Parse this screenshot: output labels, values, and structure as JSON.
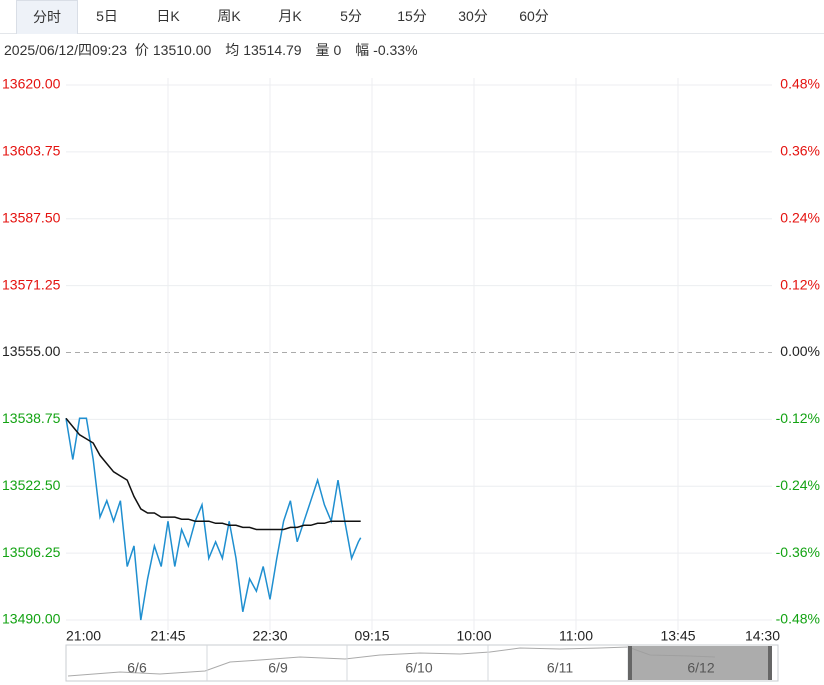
{
  "tabs": [
    "分时",
    "5日",
    "日K",
    "周K",
    "月K",
    "5分",
    "15分",
    "30分",
    "60分"
  ],
  "active_tab": 0,
  "info": {
    "time": "2025/06/12/四09:23",
    "price_label": "价",
    "price": "13510.00",
    "avg_label": "均",
    "avg": "13514.79",
    "volume_label": "量",
    "volume": "0",
    "change_label": "幅",
    "change": "-0.33%"
  },
  "chart_data": {
    "type": "line",
    "x": [
      0,
      3,
      6,
      9,
      12,
      15,
      18,
      21,
      24,
      27,
      30,
      33,
      36,
      39,
      42,
      45,
      48,
      51,
      54,
      57,
      60,
      63,
      66,
      69,
      72,
      75,
      78,
      81,
      84,
      87,
      90,
      93,
      96,
      99,
      102,
      105,
      108,
      111,
      114,
      117,
      120,
      123,
      126,
      129,
      130
    ],
    "series": [
      {
        "color": "#1f8fd0",
        "values": [
          13539,
          13529,
          13539,
          13539,
          13529,
          13515,
          13519,
          13514,
          13519,
          13503,
          13508,
          13490,
          13500,
          13508,
          13503,
          13514,
          13503,
          13512,
          13508,
          13514,
          13518,
          13505,
          13509,
          13505,
          13514,
          13505,
          13492,
          13500,
          13497,
          13503,
          13495,
          13505,
          13514,
          13519,
          13509,
          13514,
          13519,
          13524,
          13518,
          13514,
          13524,
          13514,
          13505,
          13509,
          13510
        ]
      },
      {
        "color": "#111111",
        "values": [
          13539,
          13537,
          13535,
          13534,
          13533,
          13530,
          13528,
          13526,
          13525,
          13524,
          13520,
          13517,
          13516,
          13516,
          13515,
          13515,
          13515,
          13514.5,
          13514.5,
          13514,
          13514,
          13514,
          13513.5,
          13513.5,
          13513,
          13513,
          13512.5,
          13512.5,
          13512,
          13512,
          13512,
          13512,
          13512,
          13512.5,
          13512.5,
          13513,
          13513,
          13513.5,
          13513.5,
          13514,
          13514,
          13514,
          13514,
          13514,
          13514
        ]
      }
    ],
    "xlim": [
      0,
      315
    ],
    "xticks": [
      {
        "value": 0,
        "label": "21:00"
      },
      {
        "value": 45,
        "label": "21:45"
      },
      {
        "value": 90,
        "label": "22:30"
      },
      {
        "value": 135,
        "label": "09:15"
      },
      {
        "value": 180,
        "label": "10:00"
      },
      {
        "value": 225,
        "label": "11:00"
      },
      {
        "value": 270,
        "label": "13:45"
      },
      {
        "value": 315,
        "label": "14:30"
      }
    ],
    "ylim": [
      13490,
      13620
    ],
    "yticks": [
      {
        "value": 13620,
        "label": "13620.00"
      },
      {
        "value": 13603.75,
        "label": "13603.75"
      },
      {
        "value": 13587.5,
        "label": "13587.50"
      },
      {
        "value": 13571.25,
        "label": "13571.25"
      },
      {
        "value": 13555,
        "label": "13555.00"
      },
      {
        "value": 13538.75,
        "label": "13538.75"
      },
      {
        "value": 13522.5,
        "label": "13522.50"
      },
      {
        "value": 13506.25,
        "label": "13506.25"
      },
      {
        "value": 13490,
        "label": "13490.00"
      }
    ],
    "y2lim": [
      -0.48,
      0.48
    ],
    "y2ticks": [
      {
        "value": 0.48,
        "label": "0.48%"
      },
      {
        "value": 0.36,
        "label": "0.36%"
      },
      {
        "value": 0.24,
        "label": "0.24%"
      },
      {
        "value": 0.12,
        "label": "0.12%"
      },
      {
        "value": 0,
        "label": "0.00%"
      },
      {
        "value": -0.12,
        "label": "-0.12%"
      },
      {
        "value": -0.24,
        "label": "-0.24%"
      },
      {
        "value": -0.36,
        "label": "-0.36%"
      },
      {
        "value": -0.48,
        "label": "-0.48%"
      }
    ],
    "baseline": 13555,
    "up_color": "#e4120f",
    "down_color": "#13a313",
    "grid": true
  },
  "navigator": {
    "labels": [
      "6/6",
      "6/9",
      "6/10",
      "6/11",
      "6/12"
    ]
  }
}
